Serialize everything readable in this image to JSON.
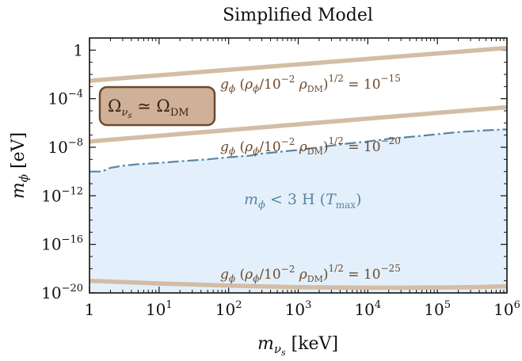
{
  "chart_data": {
    "type": "line",
    "title": "Simplified Model",
    "xlabel": "m_{ν_s} [keV]",
    "ylabel": "m_φ [eV]",
    "x_scale": "log",
    "y_scale": "log",
    "xlim": [
      1,
      1000000
    ],
    "ylim": [
      1e-20,
      10
    ],
    "x_ticks": [
      {
        "value": 1,
        "base": "1",
        "exp": ""
      },
      {
        "value": 10,
        "base": "10",
        "exp": "1"
      },
      {
        "value": 100,
        "base": "10",
        "exp": "2"
      },
      {
        "value": 1000,
        "base": "10",
        "exp": "3"
      },
      {
        "value": 10000,
        "base": "10",
        "exp": "4"
      },
      {
        "value": 100000,
        "base": "10",
        "exp": "5"
      },
      {
        "value": 1000000,
        "base": "10",
        "exp": "6"
      }
    ],
    "y_ticks": [
      {
        "value": 1,
        "base": "1",
        "exp": ""
      },
      {
        "value": 0.0001,
        "base": "10",
        "exp": "−4"
      },
      {
        "value": 1e-08,
        "base": "10",
        "exp": "−8"
      },
      {
        "value": 1e-12,
        "base": "10",
        "exp": "−12"
      },
      {
        "value": 1e-16,
        "base": "10",
        "exp": "−16"
      },
      {
        "value": 1e-20,
        "base": "10",
        "exp": "−20"
      }
    ],
    "series": [
      {
        "label_text": "g_φ (ρ_φ/10^{-2} ρ_DM)^{1/2} = 10^{-15}",
        "color": "#d4bda5",
        "style": "solid",
        "x": [
          1,
          1000000
        ],
        "y": [
          0.003,
          1.5
        ]
      },
      {
        "label_text": "g_φ (ρ_φ/10^{-2} ρ_DM)^{1/2} = 10^{-20}",
        "color": "#d4bda5",
        "style": "solid",
        "x": [
          1,
          1000000
        ],
        "y": [
          3e-08,
          2e-05
        ]
      },
      {
        "label_text": "g_φ (ρ_φ/10^{-2} ρ_DM)^{1/2} = 10^{-25}",
        "color": "#d4bda5",
        "style": "solid",
        "x": [
          1,
          3,
          10,
          30,
          100,
          300,
          1000,
          3000,
          10000,
          30000,
          100000,
          300000,
          1000000
        ],
        "y": [
          1e-19,
          8e-20,
          6e-20,
          5e-20,
          4e-20,
          3.5e-20,
          3e-20,
          2.8e-20,
          2.7e-20,
          2.7e-20,
          2.8e-20,
          3e-20,
          3.5e-20
        ]
      },
      {
        "label_text": "m_φ < 3 H (T_max)",
        "color": "#5a85a4",
        "fill": "#e3f0fc",
        "style": "dashdot",
        "x": [
          1,
          1.5,
          2,
          3,
          5,
          10,
          20,
          50,
          100,
          200,
          300,
          500,
          1000,
          2000,
          5000,
          10000,
          20000,
          50000,
          100000,
          200000,
          500000,
          1000000
        ],
        "y": [
          1e-10,
          1e-10,
          2e-10,
          3e-10,
          4e-10,
          5e-10,
          7e-10,
          1e-09,
          1.5e-09,
          2e-09,
          3e-09,
          4e-09,
          6e-09,
          1e-08,
          2e-08,
          3e-08,
          5e-08,
          8e-08,
          1.2e-07,
          1.8e-07,
          2.5e-07,
          3e-07
        ]
      }
    ],
    "annotations": {
      "box": {
        "text": "Ω_{ν_s} ≃ Ω_DM",
        "fill": "#cfb19a",
        "border": "#6b4a2d"
      }
    }
  }
}
